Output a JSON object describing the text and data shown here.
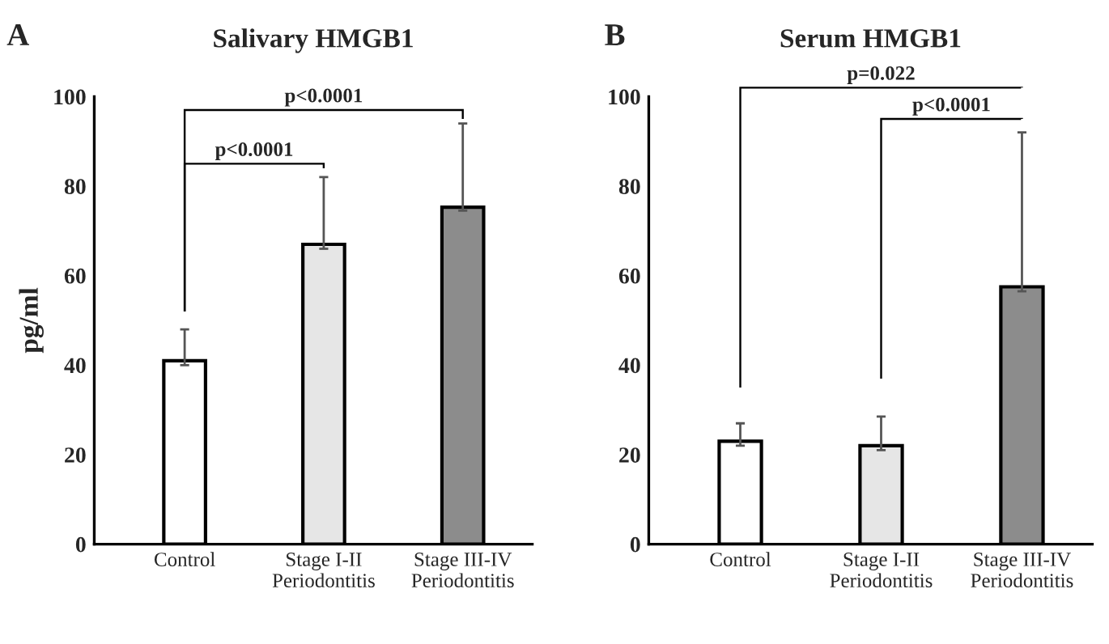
{
  "chart_data": [
    {
      "type": "bar",
      "title": "Salivary HMGB1",
      "ylabel": "pg/ml",
      "categories": [
        "Control",
        "Stage I-II\nPeriodontitis",
        "Stage III-IV\nPeriodontitis"
      ],
      "series": [
        {
          "values": [
            41,
            67,
            75.3
          ],
          "colors": [
            "#ffffff",
            "#e6e6e6",
            "#8c8c8c"
          ],
          "errors": [
            [
              40,
              48
            ],
            [
              66,
              82
            ],
            [
              74.5,
              94
            ]
          ]
        }
      ],
      "ylim": [
        0,
        100
      ],
      "yticks": [
        0,
        20,
        40,
        60,
        80,
        100
      ],
      "grid": false,
      "legend": false,
      "annotations": [
        "A",
        "p<0.0001",
        "p<0.0001"
      ]
    },
    {
      "type": "bar",
      "title": "Serum HMGB1",
      "categories": [
        "Control",
        "Stage I-II\nPeriodontitis",
        "Stage III-IV\nPeriodontitis"
      ],
      "series": [
        {
          "values": [
            23,
            22,
            57.5
          ],
          "colors": [
            "#ffffff",
            "#e6e6e6",
            "#8c8c8c"
          ],
          "errors": [
            [
              22,
              27
            ],
            [
              21,
              28.5
            ],
            [
              56.5,
              92
            ]
          ]
        }
      ],
      "ylim": [
        0,
        100
      ],
      "yticks": [
        0,
        20,
        40,
        60,
        80,
        100
      ],
      "grid": false,
      "legend": false,
      "annotations": [
        "B",
        "p=0.022",
        "p<0.0001"
      ]
    }
  ]
}
